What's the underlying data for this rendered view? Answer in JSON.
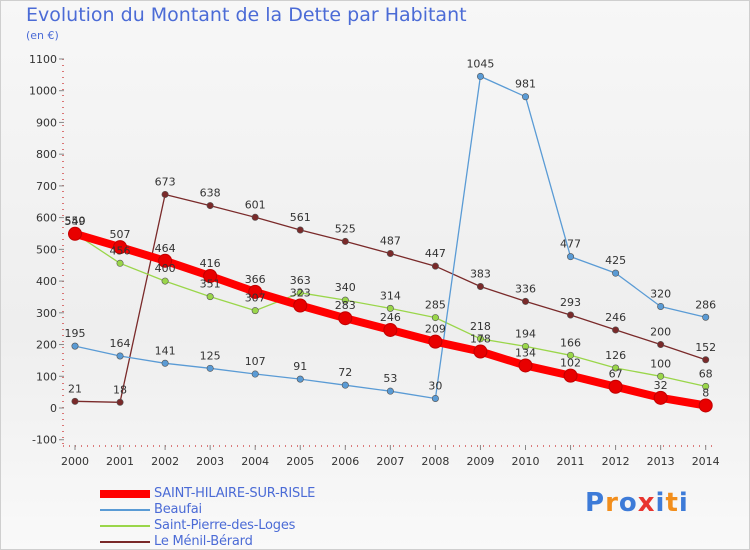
{
  "header": {
    "title": "Evolution du Montant de la Dette par Habitant",
    "unit": "(en €)"
  },
  "logo": {
    "text": "Proxiti",
    "colors": [
      "#3d7bd8",
      "#f28e1c",
      "#3d7bd8",
      "#e8352f",
      "#3d7bd8",
      "#f28e1c",
      "#3d7bd8"
    ]
  },
  "chart_data": {
    "type": "line",
    "title": "Evolution du Montant de la Dette par Habitant",
    "ylabel": "(en €)",
    "xlabel": "",
    "ylim": [
      -100,
      1100
    ],
    "yticks": [
      -100,
      0,
      100,
      200,
      300,
      400,
      500,
      600,
      700,
      800,
      900,
      1000,
      1100
    ],
    "grid": false,
    "legend_position": "bottom-left",
    "x": [
      "2000",
      "2001",
      "2002",
      "2003",
      "2004",
      "2005",
      "2006",
      "2007",
      "2008",
      "2009",
      "2010",
      "2011",
      "2012",
      "2013",
      "2014"
    ],
    "series": [
      {
        "name": "Le Ménil-Bérard",
        "color": "#7a2a2a",
        "values": [
          21,
          18,
          673,
          638,
          601,
          561,
          525,
          487,
          447,
          383,
          336,
          293,
          246,
          200,
          152
        ]
      },
      {
        "name": "Saint-Pierre-des-Loges",
        "color": "#9ad64a",
        "values": [
          550,
          456,
          400,
          351,
          307,
          363,
          340,
          314,
          285,
          218,
          194,
          166,
          126,
          100,
          68
        ]
      },
      {
        "name": "Beaufai",
        "color": "#5a9bd5",
        "values": [
          195,
          164,
          141,
          125,
          107,
          91,
          72,
          53,
          30,
          1045,
          981,
          477,
          425,
          320,
          286
        ]
      },
      {
        "name": "SAINT-HILAIRE-SUR-RISLE",
        "color": "#ff0000",
        "values": [
          549,
          507,
          464,
          416,
          366,
          323,
          283,
          246,
          209,
          178,
          134,
          102,
          67,
          32,
          8
        ]
      }
    ],
    "legend_order": [
      "SAINT-HILAIRE-SUR-RISLE",
      "Beaufai",
      "Saint-Pierre-des-Loges",
      "Le Ménil-Bérard"
    ]
  }
}
